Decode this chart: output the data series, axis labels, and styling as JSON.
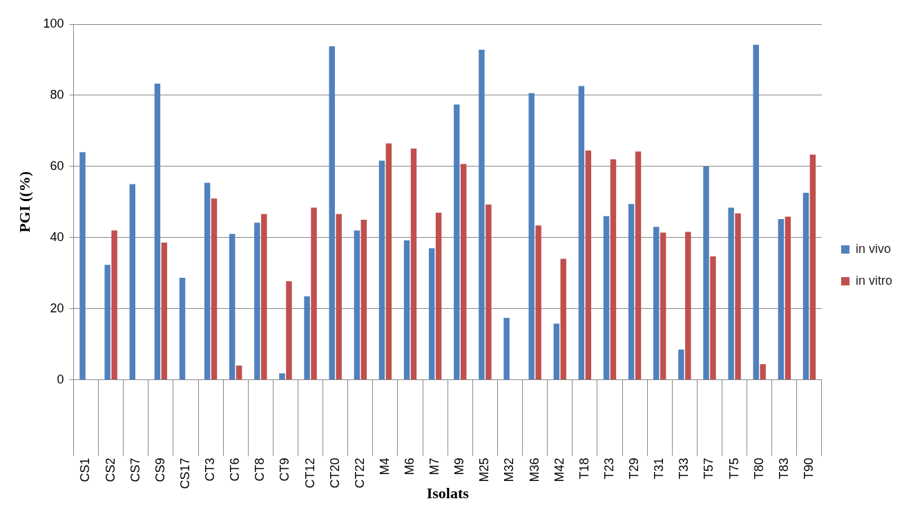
{
  "chart_data": {
    "type": "bar",
    "xlabel": "Isolats",
    "ylabel": "PGI ((%)",
    "categories": [
      "CS1",
      "CS2",
      "CS7",
      "CS9",
      "CS17",
      "CT3",
      "CT6",
      "CT8",
      "CT9",
      "CT12",
      "CT20",
      "CT22",
      "M4",
      "M6",
      "M7",
      "M9",
      "M25",
      "M32",
      "M36",
      "M42",
      "T18",
      "T23",
      "T29",
      "T31",
      "T33",
      "T57",
      "T75",
      "T80",
      "T83",
      "T90"
    ],
    "series": [
      {
        "name": "in vivo",
        "color": "#4f81bd",
        "values": [
          64,
          32.3,
          55,
          83.3,
          28.7,
          55.4,
          41,
          44.2,
          1.8,
          23.5,
          93.8,
          42,
          61.6,
          39.2,
          37,
          77.4,
          92.8,
          17.4,
          80.6,
          15.8,
          82.6,
          46,
          49.4,
          43,
          8.5,
          60,
          48.4,
          94.2,
          45.2,
          52.6
        ]
      },
      {
        "name": "in vitro",
        "color": "#c0504d",
        "values": [
          null,
          42,
          null,
          38.6,
          null,
          51,
          4,
          46.6,
          27.7,
          48.4,
          46.6,
          45,
          66.5,
          65,
          47,
          60.7,
          49.3,
          null,
          43.4,
          34,
          64.5,
          62,
          64.2,
          41.4,
          41.6,
          34.7,
          46.8,
          4.4,
          45.9,
          63.3
        ]
      }
    ],
    "ylim": [
      0,
      100
    ],
    "yticks": [
      0,
      20,
      40,
      60,
      80,
      100
    ],
    "grid": "y",
    "legend": "right"
  }
}
